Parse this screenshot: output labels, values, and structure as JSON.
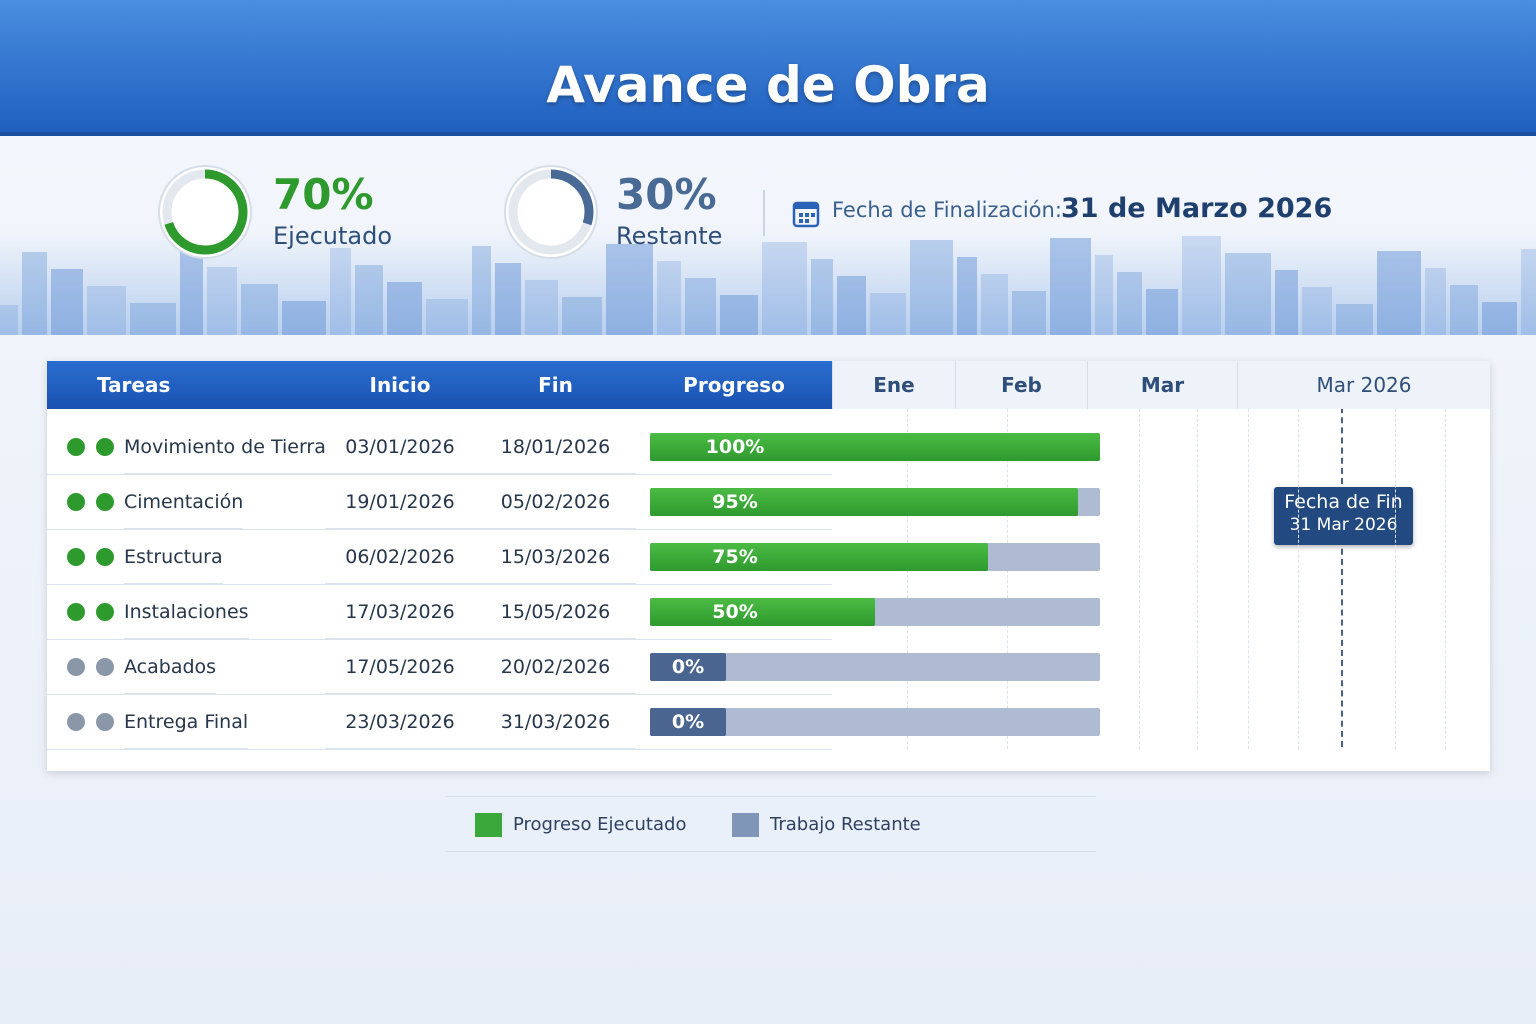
{
  "header": {
    "title": "Avance de Obra"
  },
  "kpis": [
    {
      "value": 70,
      "value_label": "70%",
      "label": "Ejecutado",
      "color": "#2e9a2e"
    },
    {
      "value": 30,
      "value_label": "30%",
      "label": "Restante",
      "color": "#4a6a96"
    }
  ],
  "finish": {
    "label": "Fecha de Finalización:",
    "date": "31 de Marzo 2026"
  },
  "table": {
    "columns": [
      "Tareas",
      "Inicio",
      "Fin",
      "Progreso"
    ],
    "timeline": [
      "Ene",
      "Feb",
      "Mar",
      "Mar 2026"
    ],
    "rows": [
      {
        "task": "Movimiento de Tierra",
        "start": "03/01/2026",
        "end": "18/01/2026",
        "progress": 100,
        "progress_label": "100%"
      },
      {
        "task": "Cimentación",
        "start": "19/01/2026",
        "end": "05/02/2026",
        "progress": 95,
        "progress_label": "95%"
      },
      {
        "task": "Estructura",
        "start": "06/02/2026",
        "end": "15/03/2026",
        "progress": 75,
        "progress_label": "75%"
      },
      {
        "task": "Instalaciones",
        "start": "17/03/2026",
        "end": "15/05/2026",
        "progress": 50,
        "progress_label": "50%"
      },
      {
        "task": "Acabados",
        "start": "17/05/2026",
        "end": "20/02/2026",
        "progress": 0,
        "progress_label": "0%"
      },
      {
        "task": "Entrega Final",
        "start": "23/03/2026",
        "end": "31/03/2026",
        "progress": 0,
        "progress_label": "0%"
      }
    ]
  },
  "tooltip": {
    "title": "Fecha de Fin",
    "date": "31 Mar 2026"
  },
  "legend": [
    {
      "name": "Progreso Ejecutado",
      "color": "#3aa83a"
    },
    {
      "name": "Trabajo Restante",
      "color": "#7f96b8"
    }
  ]
}
